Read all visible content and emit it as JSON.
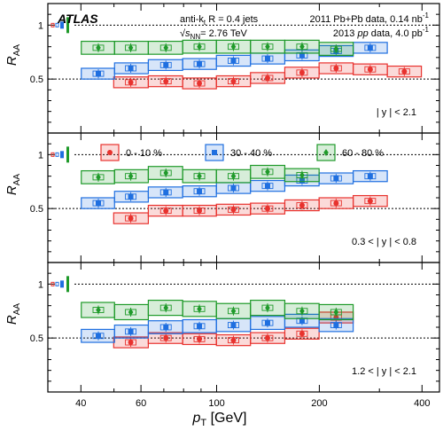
{
  "chart_data": {
    "type": "scatter",
    "x_scale": "log",
    "xlim": [
      32,
      450
    ],
    "ylim": [
      0,
      1.2
    ],
    "xlabel_var": "p",
    "xlabel_sub": "T",
    "xlabel_unit": " [GeV]",
    "ylabel_var": "R",
    "ylabel_sub": "AA",
    "x_ticks": [
      40,
      60,
      100,
      200,
      400
    ],
    "y_ticks": [
      0.5,
      1
    ],
    "atlas_label": "ATLAS",
    "jet_info": {
      "main": "anti-k",
      "sub": "t",
      "rest": " R = 0.4 jets"
    },
    "energy_info": {
      "sqrt": "√",
      "s": "s",
      "sub": "NN",
      "rest": "= 2.76 TeV"
    },
    "data_info": [
      "2011 Pb+Pb data, 0.14 nb",
      "2013 ",
      "pp",
      " data, 4.0 pb"
    ],
    "lumi_sup": "-1",
    "legend": [
      {
        "label": "0 - 10 %",
        "color": "#e8322e",
        "marker": "circle"
      },
      {
        "label": "30 - 40 %",
        "color": "#1f6fe0",
        "marker": "square"
      },
      {
        "label": "60 - 80 %",
        "color": "#1f9a2a",
        "marker": "diamond"
      }
    ],
    "panels": [
      {
        "rapidity_label": "| y | < 2.1",
        "series": [
          {
            "name": "0 - 10 %",
            "color": "#e8322e",
            "marker": "circle",
            "points": [
              [
                56,
                0.47
              ],
              [
                71,
                0.48
              ],
              [
                89,
                0.46
              ],
              [
                112,
                0.48
              ],
              [
                141,
                0.51
              ],
              [
                178,
                0.56
              ],
              [
                224,
                0.6
              ],
              [
                282,
                0.59
              ],
              [
                355,
                0.57
              ]
            ],
            "sys_lo": 0.05,
            "sys_hi": 0.05
          },
          {
            "name": "30 - 40 %",
            "color": "#1f6fe0",
            "marker": "square",
            "points": [
              [
                45,
                0.55
              ],
              [
                56,
                0.6
              ],
              [
                71,
                0.63
              ],
              [
                89,
                0.64
              ],
              [
                112,
                0.67
              ],
              [
                141,
                0.69
              ],
              [
                178,
                0.72
              ],
              [
                224,
                0.76
              ],
              [
                282,
                0.79
              ]
            ],
            "sys_lo": 0.05,
            "sys_hi": 0.05
          },
          {
            "name": "60 - 80 %",
            "color": "#1f9a2a",
            "marker": "diamond",
            "points": [
              [
                45,
                0.79
              ],
              [
                56,
                0.79
              ],
              [
                71,
                0.79
              ],
              [
                89,
                0.8
              ],
              [
                112,
                0.8
              ],
              [
                141,
                0.8
              ],
              [
                178,
                0.8
              ],
              [
                224,
                0.78
              ]
            ],
            "sys_lo": 0.06,
            "sys_hi": 0.06
          }
        ]
      },
      {
        "rapidity_label": "0.3 < | y | < 0.8",
        "series": [
          {
            "name": "0 - 10 %",
            "color": "#e8322e",
            "marker": "circle",
            "points": [
              [
                56,
                0.41
              ],
              [
                71,
                0.48
              ],
              [
                89,
                0.48
              ],
              [
                112,
                0.49
              ],
              [
                141,
                0.5
              ],
              [
                178,
                0.53
              ],
              [
                224,
                0.55
              ],
              [
                282,
                0.57
              ]
            ],
            "sys_lo": 0.05,
            "sys_hi": 0.05
          },
          {
            "name": "30 - 40 %",
            "color": "#1f6fe0",
            "marker": "square",
            "points": [
              [
                45,
                0.55
              ],
              [
                56,
                0.61
              ],
              [
                71,
                0.65
              ],
              [
                89,
                0.66
              ],
              [
                112,
                0.69
              ],
              [
                141,
                0.71
              ],
              [
                178,
                0.76
              ],
              [
                224,
                0.78
              ],
              [
                282,
                0.8
              ]
            ],
            "sys_lo": 0.05,
            "sys_hi": 0.05
          },
          {
            "name": "60 - 80 %",
            "color": "#1f9a2a",
            "marker": "diamond",
            "points": [
              [
                45,
                0.79
              ],
              [
                56,
                0.8
              ],
              [
                71,
                0.83
              ],
              [
                89,
                0.8
              ],
              [
                112,
                0.8
              ],
              [
                141,
                0.84
              ],
              [
                178,
                0.81
              ]
            ],
            "sys_lo": 0.06,
            "sys_hi": 0.06
          }
        ]
      },
      {
        "rapidity_label": "1.2 < | y | < 2.1",
        "series": [
          {
            "name": "0 - 10 %",
            "color": "#e8322e",
            "marker": "circle",
            "points": [
              [
                56,
                0.46
              ],
              [
                71,
                0.5
              ],
              [
                89,
                0.49
              ],
              [
                112,
                0.48
              ],
              [
                141,
                0.5
              ],
              [
                178,
                0.54
              ],
              [
                224,
                0.69
              ]
            ],
            "sys_lo": 0.05,
            "sys_hi": 0.05
          },
          {
            "name": "30 - 40 %",
            "color": "#1f6fe0",
            "marker": "square",
            "points": [
              [
                45,
                0.52
              ],
              [
                56,
                0.56
              ],
              [
                71,
                0.6
              ],
              [
                89,
                0.61
              ],
              [
                112,
                0.62
              ],
              [
                141,
                0.64
              ],
              [
                178,
                0.66
              ],
              [
                224,
                0.62
              ]
            ],
            "sys_lo": 0.06,
            "sys_hi": 0.06
          },
          {
            "name": "60 - 80 %",
            "color": "#1f9a2a",
            "marker": "diamond",
            "points": [
              [
                45,
                0.76
              ],
              [
                56,
                0.74
              ],
              [
                71,
                0.78
              ],
              [
                89,
                0.77
              ],
              [
                112,
                0.75
              ],
              [
                141,
                0.78
              ],
              [
                178,
                0.75
              ],
              [
                224,
                0.74
              ]
            ],
            "sys_lo": 0.07,
            "sys_hi": 0.07
          }
        ]
      }
    ]
  }
}
